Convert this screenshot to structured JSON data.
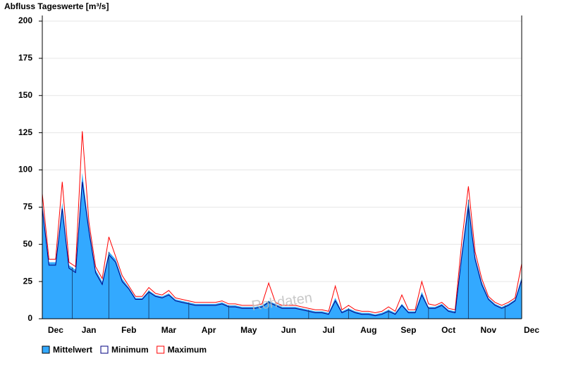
{
  "chart_data": {
    "type": "area",
    "title": "Abfluss Tageswerte [m³/s]",
    "annotation": "Rohdaten",
    "categories": [
      null,
      null,
      "Dec",
      null,
      null,
      null,
      null,
      "Jan",
      null,
      null,
      null,
      null,
      null,
      "Feb",
      null,
      null,
      null,
      null,
      null,
      "Mar",
      null,
      null,
      null,
      null,
      null,
      "Apr",
      null,
      null,
      null,
      null,
      null,
      "May",
      null,
      null,
      null,
      null,
      null,
      "Jun",
      null,
      null,
      null,
      null,
      null,
      "Jul",
      null,
      null,
      null,
      null,
      null,
      "Aug",
      null,
      null,
      null,
      null,
      null,
      "Sep",
      null,
      null,
      null,
      null,
      null,
      "Oct",
      null,
      null,
      null,
      null,
      null,
      "Nov",
      null,
      null,
      null,
      null,
      "Dec"
    ],
    "series": [
      {
        "name": "Mittelwert",
        "color": "#33a9ff",
        "values": [
          78,
          38,
          38,
          78,
          36,
          33,
          98,
          62,
          33,
          25,
          45,
          40,
          27,
          21,
          14,
          14,
          19,
          16,
          15,
          17,
          13,
          12,
          11,
          10,
          10,
          10,
          10,
          11,
          9,
          9,
          8,
          8,
          8,
          9,
          12,
          10,
          8,
          8,
          8,
          7,
          6,
          5,
          5,
          4,
          14,
          5,
          7,
          5,
          4,
          4,
          3,
          4,
          6,
          4,
          10,
          5,
          5,
          18,
          8,
          8,
          10,
          6,
          5,
          45,
          80,
          42,
          25,
          14,
          10,
          8,
          10,
          13,
          28
        ]
      },
      {
        "name": "Minimum",
        "color": "#000080",
        "values": [
          74,
          36,
          36,
          74,
          34,
          31,
          92,
          59,
          31,
          23,
          43,
          38,
          25,
          20,
          13,
          13,
          18,
          15,
          14,
          16,
          12,
          11,
          10,
          9,
          9,
          9,
          9,
          10,
          8,
          8,
          7,
          7,
          7,
          8,
          11,
          9,
          7,
          7,
          7,
          6,
          5,
          4,
          4,
          3,
          12,
          4,
          6,
          4,
          3,
          3,
          2,
          3,
          5,
          3,
          9,
          4,
          4,
          16,
          7,
          7,
          9,
          5,
          4,
          42,
          76,
          40,
          23,
          13,
          9,
          7,
          9,
          12,
          26
        ]
      },
      {
        "name": "Maximum",
        "color": "#ff0000",
        "values": [
          84,
          40,
          40,
          92,
          38,
          35,
          126,
          65,
          35,
          27,
          55,
          42,
          29,
          22,
          15,
          15,
          21,
          17,
          16,
          19,
          14,
          13,
          12,
          11,
          11,
          11,
          11,
          12,
          10,
          10,
          9,
          9,
          9,
          10,
          24,
          11,
          9,
          9,
          9,
          8,
          7,
          6,
          6,
          5,
          22,
          6,
          9,
          6,
          5,
          5,
          4,
          5,
          8,
          5,
          16,
          6,
          6,
          25,
          10,
          9,
          11,
          7,
          6,
          52,
          89,
          45,
          27,
          15,
          11,
          9,
          11,
          14,
          37
        ]
      }
    ],
    "ylim": [
      0,
      200
    ],
    "yticks": [
      0,
      25,
      50,
      75,
      100,
      125,
      150,
      175,
      200
    ],
    "grid": true,
    "legend": "bottom"
  }
}
